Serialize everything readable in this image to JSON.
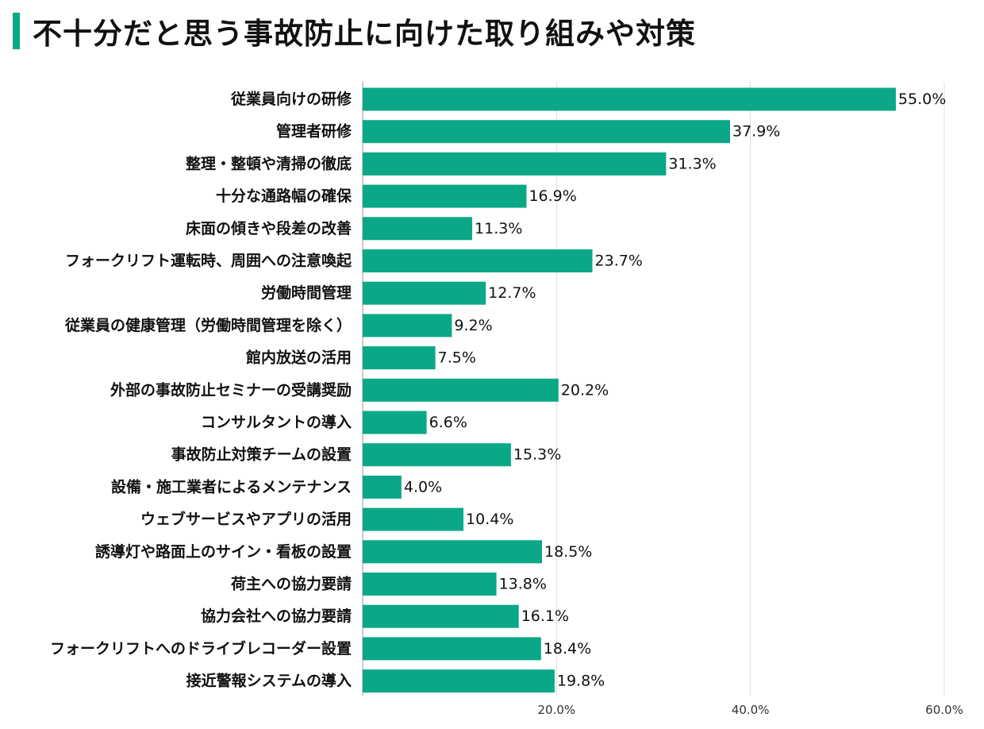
{
  "title": "不十分だと思う事故防止に向けた取り組みや対策",
  "colors": {
    "bar": "#0aa887",
    "accent": "#0aa887",
    "grid": "#dddddd",
    "axis": "#999999",
    "text": "#111111"
  },
  "chart_data": {
    "type": "bar",
    "orientation": "horizontal",
    "title": "不十分だと思う事故防止に向けた取り組みや対策",
    "categories": [
      "従業員向けの研修",
      "管理者研修",
      "整理・整頓や清掃の徹底",
      "十分な通路幅の確保",
      "床面の傾きや段差の改善",
      "フォークリフト運転時、周囲への注意喚起",
      "労働時間管理",
      "従業員の健康管理（労働時間管理を除く）",
      "館内放送の活用",
      "外部の事故防止セミナーの受講奨励",
      "コンサルタントの導入",
      "事故防止対策チームの設置",
      "設備・施工業者によるメンテナンス",
      "ウェブサービスやアプリの活用",
      "誘導灯や路面上のサイン・看板の設置",
      "荷主への協力要請",
      "協力会社への協力要請",
      "フォークリフトへのドライブレコーダー設置",
      "接近警報システムの導入"
    ],
    "values": [
      55.0,
      37.9,
      31.3,
      16.9,
      11.3,
      23.7,
      12.7,
      9.2,
      7.5,
      20.2,
      6.6,
      15.3,
      4.0,
      10.4,
      18.5,
      13.8,
      16.1,
      18.4,
      19.8
    ],
    "value_labels": [
      "55.0%",
      "37.9%",
      "31.3%",
      "16.9%",
      "11.3%",
      "23.7%",
      "12.7%",
      "9.2%",
      "7.5%",
      "20.2%",
      "6.6%",
      "15.3%",
      "4.0%",
      "10.4%",
      "18.5%",
      "13.8%",
      "16.1%",
      "18.4%",
      "19.8%"
    ],
    "x_ticks": [
      20,
      40,
      60
    ],
    "x_tick_labels": [
      "20.0%",
      "40.0%",
      "60.0%"
    ],
    "xlim": [
      0,
      60
    ],
    "grid": true,
    "legend": "none"
  }
}
